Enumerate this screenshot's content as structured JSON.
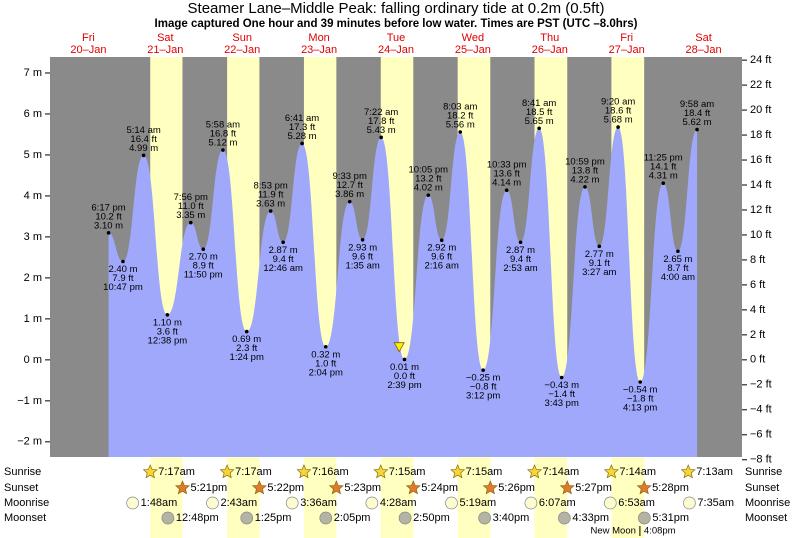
{
  "chart_data": {
    "type": "area",
    "title": "Steamer Lane–Middle Peak: falling  ordinary tide at 0.2m (0.5ft)",
    "subtitle": "Image captured One hour and 39 minutes before low water. Times are PST (UTC –8.0hrs)",
    "categories": [
      {
        "weekday": "Fri",
        "date": "20–Jan"
      },
      {
        "weekday": "Sat",
        "date": "21–Jan"
      },
      {
        "weekday": "Sun",
        "date": "22–Jan"
      },
      {
        "weekday": "Mon",
        "date": "23–Jan"
      },
      {
        "weekday": "Tue",
        "date": "24–Jan"
      },
      {
        "weekday": "Wed",
        "date": "25–Jan"
      },
      {
        "weekday": "Thu",
        "date": "26–Jan"
      },
      {
        "weekday": "Fri",
        "date": "27–Jan"
      },
      {
        "weekday": "Sat",
        "date": "28–Jan"
      }
    ],
    "xlim": [
      0,
      216
    ],
    "x": [
      18.28,
      22.78,
      29.23,
      36.63,
      43.93,
      47.83,
      53.97,
      61.4,
      68.88,
      72.77,
      78.68,
      86.07,
      93.55,
      97.58,
      103.37,
      110.65,
      118.08,
      122.27,
      128.05,
      135.2,
      142.55,
      146.88,
      152.68,
      159.72,
      166.98,
      171.45,
      177.33,
      184.22,
      191.42,
      196,
      201.97
    ],
    "values": [
      3.1,
      2.4,
      4.99,
      1.1,
      3.35,
      2.7,
      5.12,
      0.69,
      3.63,
      2.87,
      5.28,
      0.32,
      3.86,
      2.93,
      5.43,
      0.01,
      4.02,
      2.92,
      5.56,
      -0.25,
      4.14,
      2.87,
      5.65,
      -0.43,
      4.22,
      2.77,
      5.68,
      -0.54,
      4.31,
      2.65,
      5.62
    ],
    "value_labels": [
      "3.10 m",
      "2.40 m",
      "4.99 m",
      "1.10 m",
      "3.35 m",
      "2.70 m",
      "5.12 m",
      "0.69 m",
      "3.63 m",
      "2.87 m",
      "5.28 m",
      "0.32 m",
      "3.86 m",
      "2.93 m",
      "5.43 m",
      "0.01 m",
      "4.02 m",
      "2.92 m",
      "5.56 m",
      "−0.25 m",
      "4.14 m",
      "2.87 m",
      "5.65 m",
      "−0.43 m",
      "4.22 m",
      "2.77 m",
      "5.68 m",
      "−0.54 m",
      "4.31 m",
      "2.65 m",
      "5.62 m"
    ],
    "feet_labels": [
      "10.2 ft",
      "7.9 ft",
      "16.4 ft",
      "3.6 ft",
      "11.0 ft",
      "8.9 ft",
      "16.8 ft",
      "2.3 ft",
      "11.9 ft",
      "9.4 ft",
      "17.3 ft",
      "1.0 ft",
      "12.7 ft",
      "9.6 ft",
      "17.8 ft",
      "0.0 ft",
      "13.2 ft",
      "9.6 ft",
      "18.2 ft",
      "−0.8 ft",
      "13.6 ft",
      "9.4 ft",
      "18.5 ft",
      "−1.4 ft",
      "13.8 ft",
      "9.1 ft",
      "18.6 ft",
      "−1.8 ft",
      "14.1 ft",
      "8.7 ft",
      "18.4 ft"
    ],
    "times": [
      "6:17 pm",
      "10:47 pm",
      "5:14 am",
      "12:38 pm",
      "7:56 pm",
      "11:50 pm",
      "5:58 am",
      "1:24 pm",
      "8:53 pm",
      "12:46 am",
      "6:41 am",
      "2:04 pm",
      "9:33 pm",
      "1:35 am",
      "7:22 am",
      "2:39 pm",
      "10:05 pm",
      "2:16 am",
      "8:03 am",
      "3:12 pm",
      "10:33 pm",
      "2:53 am",
      "8:41 am",
      "3:43 pm",
      "10:59 pm",
      "3:27 am",
      "9:20 am",
      "4:13 pm",
      "11:25 pm",
      "4:00 am",
      "9:58 am"
    ],
    "color": "#a0a8fc",
    "marker": {
      "x": 109,
      "value": 0.2
    },
    "ylim": [
      -2.37,
      7.39
    ],
    "yticks": [
      {
        "value": -2,
        "label": "−2 m"
      },
      {
        "value": -1,
        "label": "−1 m"
      },
      {
        "value": 0,
        "label": "0 m"
      },
      {
        "value": 1,
        "label": "1 m"
      },
      {
        "value": 2,
        "label": "2 m"
      },
      {
        "value": 3,
        "label": "3 m"
      },
      {
        "value": 4,
        "label": "4 m"
      },
      {
        "value": 5,
        "label": "5 m"
      },
      {
        "value": 6,
        "label": "6 m"
      },
      {
        "value": 7,
        "label": "7 m"
      }
    ],
    "y2lim": [
      -7.78,
      24.25
    ],
    "y2ticks": [
      {
        "value": -8,
        "label": "−8 ft"
      },
      {
        "value": -6,
        "label": "−6 ft"
      },
      {
        "value": -4,
        "label": "−4 ft"
      },
      {
        "value": -2,
        "label": "−2 ft"
      },
      {
        "value": 0,
        "label": "0 ft"
      },
      {
        "value": 2,
        "label": "2 ft"
      },
      {
        "value": 4,
        "label": "4 ft"
      },
      {
        "value": 6,
        "label": "6 ft"
      },
      {
        "value": 8,
        "label": "8 ft"
      },
      {
        "value": 10,
        "label": "10 ft"
      },
      {
        "value": 12,
        "label": "12 ft"
      },
      {
        "value": 14,
        "label": "14 ft"
      },
      {
        "value": 16,
        "label": "16 ft"
      },
      {
        "value": 18,
        "label": "18 ft"
      },
      {
        "value": 20,
        "label": "20 ft"
      },
      {
        "value": 22,
        "label": "22 ft"
      },
      {
        "value": 24,
        "label": "24 ft"
      }
    ],
    "sunrise": {
      "label": "Sunrise",
      "times": [
        null,
        "7:17am",
        "7:17am",
        "7:16am",
        "7:15am",
        "7:15am",
        "7:14am",
        "7:14am",
        "7:13am"
      ]
    },
    "sunset": {
      "label": "Sunset",
      "times": [
        null,
        "5:21pm",
        "5:22pm",
        "5:23pm",
        "5:24pm",
        "5:26pm",
        "5:27pm",
        "5:28pm",
        null
      ]
    },
    "moonrise": {
      "label": "Moonrise",
      "times": [
        null,
        "1:48am",
        "2:43am",
        "3:36am",
        "4:28am",
        "5:19am",
        "6:07am",
        "6:53am",
        "7:35am"
      ]
    },
    "moonset": {
      "label": "Moonset",
      "times": [
        null,
        "12:48pm",
        "1:25pm",
        "2:05pm",
        "2:50pm",
        "3:40pm",
        "4:33pm",
        "5:31pm",
        null
      ]
    },
    "moon_phase": {
      "label": "New Moon",
      "times": [
        null,
        null,
        null,
        null,
        null,
        null,
        null,
        "4:08pm",
        null
      ]
    }
  }
}
